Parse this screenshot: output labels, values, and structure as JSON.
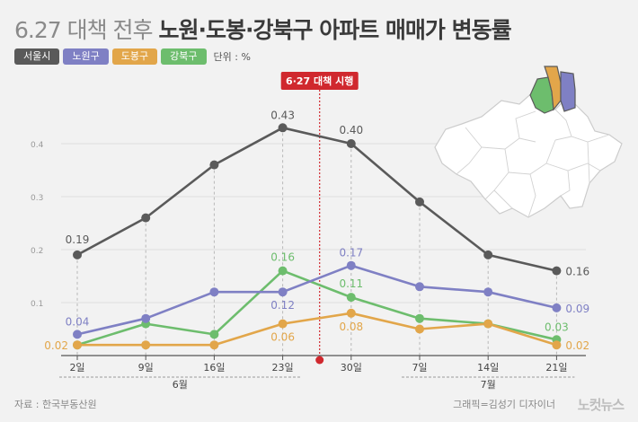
{
  "header": {
    "title_light": "6.27 대책 전후",
    "title_bold": "노원·도봉·강북구 아파트 매매가 변동률"
  },
  "legend": {
    "unit": "단위 : %"
  },
  "colors": {
    "seoul": "#5a5a5a",
    "nowon": "#7f80c4",
    "dobong": "#e2a64a",
    "gangbuk": "#6dbd6d",
    "marker": "#d0282e"
  },
  "map": {
    "icon": "seoul-district-map-icon"
  },
  "footer": {
    "source": "자료 : 한국부동산원",
    "credit": "그래픽=김성기 디자이너",
    "logo": "노컷뉴스"
  },
  "chart_data": {
    "type": "line",
    "categories": [
      "2일",
      "9일",
      "16일",
      "23일",
      "30일",
      "7일",
      "14일",
      "21일"
    ],
    "month_groups": [
      {
        "label": "6월",
        "from": 0,
        "to": 3
      },
      {
        "label": "7월",
        "from": 5,
        "to": 7
      }
    ],
    "y_ticks": [
      "0.1",
      "0.2",
      "0.3",
      "0.4"
    ],
    "ylim": [
      0,
      0.45
    ],
    "grid": true,
    "event": {
      "label": "6·27 대책 시행",
      "position_between": [
        3,
        4
      ]
    },
    "series": [
      {
        "name": "서울시",
        "color_key": "seoul",
        "values": [
          0.19,
          0.26,
          0.36,
          0.43,
          0.4,
          0.29,
          0.19,
          0.16
        ],
        "labels": [
          "0.19",
          "",
          "",
          "0.43",
          "0.40",
          "",
          "",
          "0.16"
        ]
      },
      {
        "name": "노원구",
        "color_key": "nowon",
        "values": [
          0.04,
          0.07,
          0.12,
          0.12,
          0.17,
          0.13,
          0.12,
          0.09
        ],
        "labels": [
          "0.04",
          "",
          "",
          "0.12",
          "0.17",
          "",
          "",
          "0.09"
        ]
      },
      {
        "name": "도봉구",
        "color_key": "dobong",
        "values": [
          0.02,
          0.02,
          0.02,
          0.06,
          0.08,
          0.05,
          0.06,
          0.02
        ],
        "labels": [
          "0.02",
          "",
          "",
          "0.06",
          "0.08",
          "",
          "",
          "0.02"
        ]
      },
      {
        "name": "강북구",
        "color_key": "gangbuk",
        "values": [
          0.02,
          0.06,
          0.04,
          0.16,
          0.11,
          0.07,
          0.06,
          0.03
        ],
        "labels": [
          "",
          "",
          "",
          "0.16",
          "0.11",
          "",
          "",
          "0.03"
        ]
      }
    ]
  }
}
